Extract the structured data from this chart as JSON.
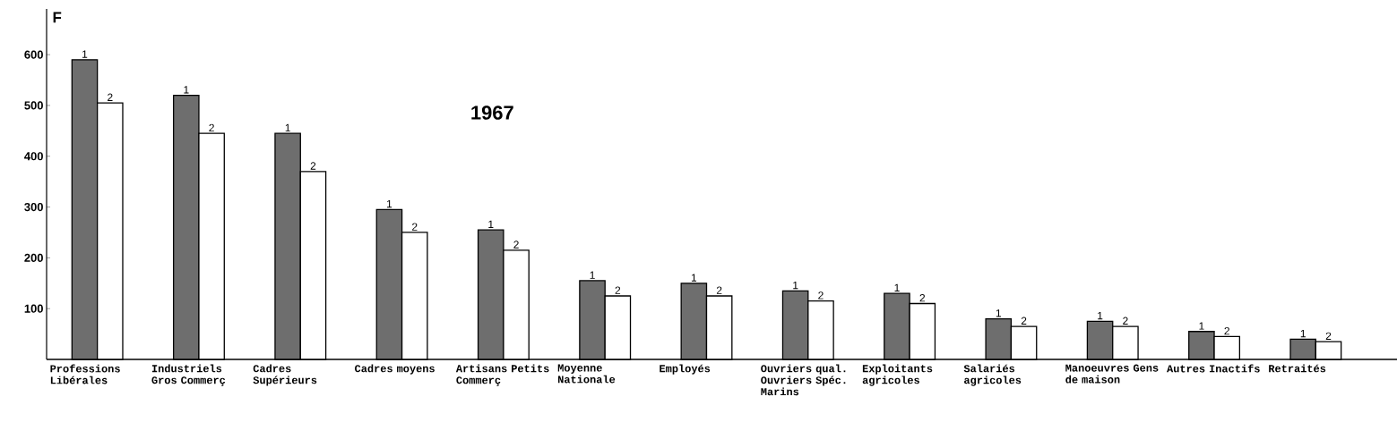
{
  "chart_data": {
    "type": "bar",
    "title": "1967",
    "ylabel": "F",
    "categories": [
      "Professions Libérales",
      "Industriels Gros Commerç",
      "Cadres Supérieurs",
      "Cadres moyens",
      "Artisans Petits Commerç",
      "Moyenne Nationale",
      "Employés",
      "Ouvriers qual. Ouvriers Spéc. Marins",
      "Exploitants agricoles",
      "Salariés agricoles",
      "Manoeuvres Gens de maison",
      "Autres Inactifs",
      "Retraités"
    ],
    "series": [
      {
        "name": "1",
        "color": "#6e6e6e",
        "values": [
          590,
          520,
          445,
          295,
          255,
          155,
          150,
          135,
          130,
          80,
          75,
          55,
          40
        ]
      },
      {
        "name": "2",
        "color": "#ffffff",
        "values": [
          505,
          445,
          370,
          250,
          215,
          125,
          125,
          115,
          110,
          65,
          65,
          45,
          35
        ]
      }
    ],
    "ylim": [
      0,
      690
    ],
    "yticks": [
      100,
      200,
      300,
      400,
      500,
      600
    ]
  }
}
